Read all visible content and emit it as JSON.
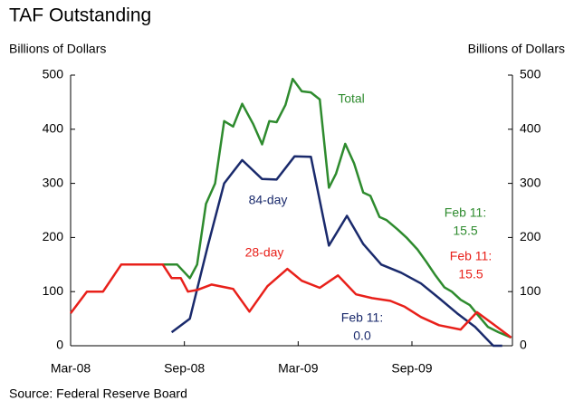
{
  "chart_data": {
    "type": "line",
    "title": "TAF Outstanding",
    "y_label": "Billions of Dollars",
    "y2_label": "Billions of Dollars",
    "source": "Source: Federal Reserve Board",
    "xlim": [
      0,
      23.3
    ],
    "xticks": [
      {
        "value": 0,
        "label": "Mar-08"
      },
      {
        "value": 6,
        "label": "Sep-08"
      },
      {
        "value": 12,
        "label": "Mar-09"
      },
      {
        "value": 18,
        "label": "Sep-09"
      }
    ],
    "ylim": [
      0,
      500
    ],
    "yticks": [
      0,
      100,
      200,
      300,
      400,
      500
    ],
    "y2lim": [
      0,
      500
    ],
    "y2ticks": [
      0,
      100,
      200,
      300,
      400,
      500
    ],
    "series": [
      {
        "name": "Total",
        "color": "#2e8b2e",
        "x": [
          4.86,
          5.62,
          6.29,
          6.67,
          7.14,
          7.62,
          8.1,
          8.57,
          9.05,
          9.62,
          10.1,
          10.48,
          10.86,
          11.33,
          11.71,
          12.19,
          12.67,
          13.14,
          13.62,
          14,
          14.48,
          14.95,
          15.43,
          15.81,
          16.29,
          16.67,
          17.24,
          17.71,
          18.29,
          18.76,
          19.24,
          19.71,
          20.1,
          20.57,
          21.05,
          21.52,
          22,
          22.57,
          23.24
        ],
        "values": [
          150,
          150,
          125,
          150,
          262,
          300,
          415,
          405,
          447,
          410,
          372,
          415,
          413,
          445,
          493,
          470,
          468,
          455,
          292,
          318,
          373,
          337,
          283,
          277,
          238,
          232,
          215,
          200,
          178,
          155,
          130,
          108,
          100,
          85,
          75,
          55,
          35,
          25,
          15
        ]
      },
      {
        "name": "84-day",
        "color": "#1a2a6c",
        "x": [
          5.33,
          6.29,
          7.24,
          8.1,
          9.05,
          10.1,
          10.86,
          11.81,
          12.67,
          13.62,
          14.57,
          15.43,
          16.38,
          17.43,
          18.48,
          19.43,
          20.38,
          21.33,
          22.29,
          22.76
        ],
        "values": [
          25,
          50,
          185,
          300,
          343,
          308,
          307,
          350,
          349,
          185,
          240,
          188,
          150,
          135,
          115,
          88,
          60,
          35,
          0,
          0
        ]
      },
      {
        "name": "28-day",
        "color": "#e8201a",
        "x": [
          0,
          0.86,
          1.71,
          2.67,
          4.86,
          5.33,
          5.81,
          6.19,
          6.67,
          7.43,
          8.57,
          9.43,
          10.38,
          11.43,
          12.19,
          13.14,
          14.1,
          15.05,
          15.9,
          16.86,
          17.62,
          18.48,
          19.43,
          20.57,
          21.43,
          22.29,
          23.24
        ],
        "values": [
          60,
          100,
          100,
          150,
          150,
          125,
          125,
          100,
          103,
          113,
          105,
          63,
          110,
          142,
          120,
          107,
          130,
          95,
          88,
          83,
          72,
          53,
          38,
          30,
          62,
          40,
          15
        ]
      }
    ],
    "annotations": [
      {
        "lines": [
          "Total"
        ],
        "color": "#2e8b2e"
      },
      {
        "lines": [
          "84-day"
        ],
        "color": "#1a2a6c"
      },
      {
        "lines": [
          "28-day"
        ],
        "color": "#e8201a"
      },
      {
        "lines": [
          "Feb 11:",
          "0.0"
        ],
        "color": "#1a2a6c"
      },
      {
        "lines": [
          "Feb 11:",
          "15.5"
        ],
        "color": "#2e8b2e"
      },
      {
        "lines": [
          "Feb 11:",
          "15.5"
        ],
        "color": "#e8201a"
      }
    ]
  }
}
